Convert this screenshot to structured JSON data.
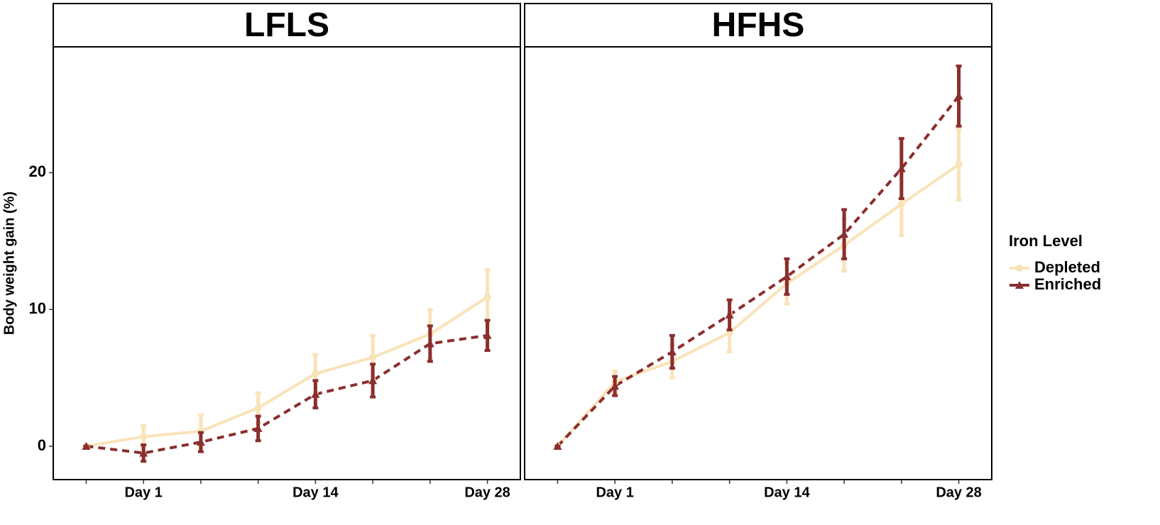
{
  "chart_data": [
    {
      "type": "line",
      "title": "LFLS",
      "ylabel": "Body weight gain (%)",
      "legend_title": "Iron Level",
      "categories": [
        null,
        "Day 1",
        null,
        null,
        "Day 14",
        null,
        null,
        "Day 28"
      ],
      "ylim": [
        -2.44,
        29.2
      ],
      "yticks": [
        0,
        10,
        20
      ],
      "series": [
        {
          "name": "Depleted",
          "color": "#f9e3b8",
          "linestyle": "solid",
          "marker": "circle",
          "values": [
            0,
            0.7,
            1.1,
            2.8,
            5.3,
            6.5,
            8.2,
            10.9
          ],
          "errors": [
            0,
            0.8,
            1.2,
            1.1,
            1.4,
            1.6,
            1.8,
            2.0
          ]
        },
        {
          "name": "Enriched",
          "color": "#8b2e2e",
          "linestyle": "dashed",
          "marker": "triangle",
          "values": [
            0,
            -0.5,
            0.3,
            1.3,
            3.8,
            4.8,
            7.5,
            8.1
          ],
          "errors": [
            0,
            0.6,
            0.7,
            0.9,
            1.0,
            1.2,
            1.3,
            1.1
          ]
        }
      ]
    },
    {
      "type": "line",
      "title": "HFHS",
      "categories": [
        null,
        "Day 1",
        null,
        null,
        "Day 14",
        null,
        null,
        "Day 28"
      ],
      "ylim": [
        -2.44,
        29.2
      ],
      "yticks": [
        0,
        10,
        20
      ],
      "series": [
        {
          "name": "Depleted",
          "color": "#f9e3b8",
          "linestyle": "solid",
          "marker": "circle",
          "values": [
            0,
            4.7,
            6.2,
            8.3,
            11.9,
            14.7,
            17.7,
            20.6
          ],
          "errors": [
            0,
            0.8,
            1.2,
            1.4,
            1.5,
            1.9,
            2.3,
            2.6
          ]
        },
        {
          "name": "Enriched",
          "color": "#8b2e2e",
          "linestyle": "dashed",
          "marker": "triangle",
          "values": [
            0,
            4.4,
            6.9,
            9.6,
            12.4,
            15.5,
            20.3,
            25.6
          ],
          "errors": [
            0,
            0.7,
            1.2,
            1.1,
            1.3,
            1.8,
            2.2,
            2.2
          ]
        }
      ]
    }
  ]
}
